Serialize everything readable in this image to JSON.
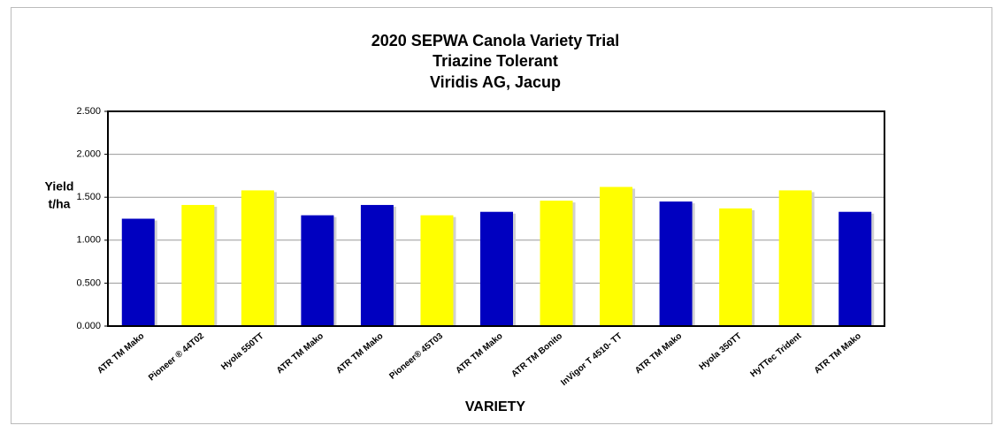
{
  "chart_data": {
    "type": "bar",
    "title": [
      "2020 SEPWA Canola Variety Trial",
      "Triazine Tolerant",
      "Viridis AG, Jacup"
    ],
    "y_label": [
      "Yield",
      "t/ha"
    ],
    "x_label": "VARIETY",
    "categories": [
      "ATR TM Mako",
      "Pioneer ® 44T02",
      "Hyola 550TT",
      "ATR TM Mako",
      "ATR TM Mako",
      "Pioneer® 45T03",
      "ATR TM Mako",
      "ATR TM Bonito",
      "InVigor T 4510- TT",
      "ATR TM Mako",
      "Hyola 350TT",
      "HyTTec Trident",
      "ATR TM Mako"
    ],
    "values": [
      1.25,
      1.41,
      1.58,
      1.29,
      1.41,
      1.29,
      1.33,
      1.46,
      1.62,
      1.45,
      1.37,
      1.58,
      1.33
    ],
    "colors": [
      "#0000c0",
      "#ffff00",
      "#ffff00",
      "#0000c0",
      "#0000c0",
      "#ffff00",
      "#0000c0",
      "#ffff00",
      "#ffff00",
      "#0000c0",
      "#ffff00",
      "#ffff00",
      "#0000c0"
    ],
    "ylim": [
      0,
      2.5
    ],
    "yticks": [
      {
        "value": 0,
        "label": "0.000"
      },
      {
        "value": 0.5,
        "label": "0.500"
      },
      {
        "value": 1,
        "label": "1.000"
      },
      {
        "value": 1.5,
        "label": "1.500"
      },
      {
        "value": 2,
        "label": "2.000"
      },
      {
        "value": 2.5,
        "label": "2.500"
      }
    ],
    "grid": true
  }
}
